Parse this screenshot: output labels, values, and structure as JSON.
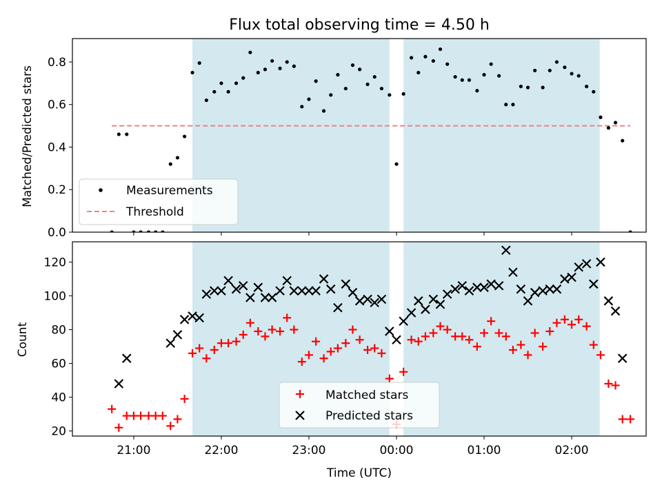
{
  "chart_data": [
    {
      "type": "scatter",
      "title": "Flux total observing time = 4.50 h",
      "xlabel": "",
      "ylabel": "Matched/Predicted stars",
      "ylim": [
        0,
        0.91
      ],
      "yticks": [
        "0.0",
        "0.2",
        "0.4",
        "0.6",
        "0.8"
      ],
      "xtick_labels": [
        "21:00",
        "22:00",
        "23:00",
        "00:00",
        "01:00",
        "02:00"
      ],
      "xtick_hours": [
        21,
        22,
        23,
        24,
        25,
        26
      ],
      "xlim_hours": [
        20.3,
        26.85
      ],
      "shaded_spans_hours": [
        [
          21.67,
          23.92
        ],
        [
          24.08,
          26.32
        ]
      ],
      "shade_color": "#d3e9ef",
      "threshold": {
        "name": "Threshold",
        "value": 0.5,
        "from_hour": 20.75,
        "to_hour": 26.67,
        "color": "#f08080"
      },
      "series": [
        {
          "name": "Measurements",
          "marker": "dot",
          "color": "#000000",
          "points": [
            [
              20.75,
              0.0
            ],
            [
              20.83,
              0.46
            ],
            [
              20.92,
              0.46
            ],
            [
              21.0,
              0.0
            ],
            [
              21.08,
              0.0
            ],
            [
              21.17,
              0.0
            ],
            [
              21.25,
              0.0
            ],
            [
              21.33,
              0.0
            ],
            [
              21.42,
              0.32
            ],
            [
              21.5,
              0.35
            ],
            [
              21.58,
              0.45
            ],
            [
              21.67,
              0.75
            ],
            [
              21.75,
              0.795
            ],
            [
              21.83,
              0.62
            ],
            [
              21.92,
              0.66
            ],
            [
              22.0,
              0.7
            ],
            [
              22.08,
              0.66
            ],
            [
              22.17,
              0.7
            ],
            [
              22.25,
              0.725
            ],
            [
              22.33,
              0.845
            ],
            [
              22.42,
              0.75
            ],
            [
              22.5,
              0.765
            ],
            [
              22.58,
              0.805
            ],
            [
              22.67,
              0.77
            ],
            [
              22.75,
              0.8
            ],
            [
              22.83,
              0.78
            ],
            [
              22.92,
              0.59
            ],
            [
              23.0,
              0.625
            ],
            [
              23.08,
              0.71
            ],
            [
              23.17,
              0.57
            ],
            [
              23.25,
              0.645
            ],
            [
              23.33,
              0.74
            ],
            [
              23.42,
              0.675
            ],
            [
              23.5,
              0.785
            ],
            [
              23.58,
              0.765
            ],
            [
              23.67,
              0.695
            ],
            [
              23.75,
              0.73
            ],
            [
              23.83,
              0.675
            ],
            [
              23.92,
              0.645
            ],
            [
              24.0,
              0.32
            ],
            [
              24.08,
              0.65
            ],
            [
              24.17,
              0.82
            ],
            [
              24.25,
              0.75
            ],
            [
              24.33,
              0.825
            ],
            [
              24.42,
              0.805
            ],
            [
              24.5,
              0.86
            ],
            [
              24.58,
              0.79
            ],
            [
              24.67,
              0.73
            ],
            [
              24.75,
              0.715
            ],
            [
              24.83,
              0.715
            ],
            [
              24.92,
              0.665
            ],
            [
              25.0,
              0.74
            ],
            [
              25.08,
              0.79
            ],
            [
              25.17,
              0.735
            ],
            [
              25.25,
              0.6
            ],
            [
              25.33,
              0.6
            ],
            [
              25.42,
              0.685
            ],
            [
              25.5,
              0.68
            ],
            [
              25.58,
              0.76
            ],
            [
              25.67,
              0.68
            ],
            [
              25.75,
              0.76
            ],
            [
              25.83,
              0.8
            ],
            [
              25.92,
              0.775
            ],
            [
              26.0,
              0.745
            ],
            [
              26.08,
              0.735
            ],
            [
              26.17,
              0.685
            ],
            [
              26.25,
              0.66
            ],
            [
              26.33,
              0.54
            ],
            [
              26.42,
              0.49
            ],
            [
              26.5,
              0.515
            ],
            [
              26.58,
              0.43
            ],
            [
              26.67,
              0.0
            ]
          ]
        }
      ],
      "legend": {
        "placement": "lower-left",
        "entries": [
          "Measurements",
          "Threshold"
        ]
      }
    },
    {
      "type": "scatter",
      "title": "",
      "xlabel": "Time (UTC)",
      "ylabel": "Count",
      "ylim": [
        17,
        132
      ],
      "yticks": [
        "20",
        "40",
        "60",
        "80",
        "100",
        "120"
      ],
      "xtick_labels": [
        "21:00",
        "22:00",
        "23:00",
        "00:00",
        "01:00",
        "02:00"
      ],
      "xtick_hours": [
        21,
        22,
        23,
        24,
        25,
        26
      ],
      "xlim_hours": [
        20.3,
        26.85
      ],
      "shaded_spans_hours": [
        [
          21.67,
          23.92
        ],
        [
          24.08,
          26.32
        ]
      ],
      "series": [
        {
          "name": "Matched stars",
          "marker": "plus",
          "color": "#ff0000",
          "points": [
            [
              20.75,
              33
            ],
            [
              20.83,
              22
            ],
            [
              20.92,
              29
            ],
            [
              21.0,
              29
            ],
            [
              21.08,
              29
            ],
            [
              21.17,
              29
            ],
            [
              21.25,
              29
            ],
            [
              21.33,
              29
            ],
            [
              21.42,
              23
            ],
            [
              21.5,
              27
            ],
            [
              21.58,
              39
            ],
            [
              21.67,
              66
            ],
            [
              21.75,
              69
            ],
            [
              21.83,
              63
            ],
            [
              21.92,
              68
            ],
            [
              22.0,
              72
            ],
            [
              22.08,
              72
            ],
            [
              22.17,
              73
            ],
            [
              22.25,
              77
            ],
            [
              22.33,
              84
            ],
            [
              22.42,
              79
            ],
            [
              22.5,
              76
            ],
            [
              22.58,
              80
            ],
            [
              22.67,
              79
            ],
            [
              22.75,
              87
            ],
            [
              22.83,
              80
            ],
            [
              22.92,
              61
            ],
            [
              23.0,
              65
            ],
            [
              23.08,
              73
            ],
            [
              23.17,
              63
            ],
            [
              23.25,
              67
            ],
            [
              23.33,
              69
            ],
            [
              23.42,
              72
            ],
            [
              23.5,
              80
            ],
            [
              23.58,
              74
            ],
            [
              23.67,
              68
            ],
            [
              23.75,
              69
            ],
            [
              23.83,
              66
            ],
            [
              23.92,
              51
            ],
            [
              24.0,
              24
            ],
            [
              24.08,
              55
            ],
            [
              24.17,
              74
            ],
            [
              24.25,
              73
            ],
            [
              24.33,
              76
            ],
            [
              24.42,
              78
            ],
            [
              24.5,
              82
            ],
            [
              24.58,
              80
            ],
            [
              24.67,
              76
            ],
            [
              24.75,
              76
            ],
            [
              24.83,
              74
            ],
            [
              24.92,
              70
            ],
            [
              25.0,
              78
            ],
            [
              25.08,
              85
            ],
            [
              25.17,
              78
            ],
            [
              25.25,
              76
            ],
            [
              25.33,
              68
            ],
            [
              25.42,
              71
            ],
            [
              25.5,
              65
            ],
            [
              25.58,
              78
            ],
            [
              25.67,
              70
            ],
            [
              25.75,
              79
            ],
            [
              25.83,
              84
            ],
            [
              25.92,
              86
            ],
            [
              26.0,
              83
            ],
            [
              26.08,
              86
            ],
            [
              26.17,
              82
            ],
            [
              26.25,
              71
            ],
            [
              26.33,
              65
            ],
            [
              26.42,
              48
            ],
            [
              26.5,
              47
            ],
            [
              26.58,
              27
            ],
            [
              26.67,
              27
            ]
          ]
        },
        {
          "name": "Predicted stars",
          "marker": "x",
          "color": "#000000",
          "points": [
            [
              20.83,
              48
            ],
            [
              20.92,
              63
            ],
            [
              21.42,
              72
            ],
            [
              21.5,
              77
            ],
            [
              21.58,
              86
            ],
            [
              21.67,
              88
            ],
            [
              21.75,
              87
            ],
            [
              21.83,
              101
            ],
            [
              21.92,
              103
            ],
            [
              22.0,
              103
            ],
            [
              22.08,
              109
            ],
            [
              22.17,
              104
            ],
            [
              22.25,
              106
            ],
            [
              22.33,
              99
            ],
            [
              22.42,
              105
            ],
            [
              22.5,
              99
            ],
            [
              22.58,
              99
            ],
            [
              22.67,
              103
            ],
            [
              22.75,
              109
            ],
            [
              22.83,
              103
            ],
            [
              22.92,
              103
            ],
            [
              23.0,
              103
            ],
            [
              23.08,
              103
            ],
            [
              23.17,
              110
            ],
            [
              23.25,
              104
            ],
            [
              23.33,
              93
            ],
            [
              23.42,
              107
            ],
            [
              23.5,
              102
            ],
            [
              23.58,
              97
            ],
            [
              23.67,
              98
            ],
            [
              23.75,
              96
            ],
            [
              23.83,
              98
            ],
            [
              23.92,
              79
            ],
            [
              24.0,
              74
            ],
            [
              24.08,
              85
            ],
            [
              24.17,
              90
            ],
            [
              24.25,
              97
            ],
            [
              24.33,
              92
            ],
            [
              24.42,
              98
            ],
            [
              24.5,
              95
            ],
            [
              24.58,
              101
            ],
            [
              24.67,
              104
            ],
            [
              24.75,
              106
            ],
            [
              24.83,
              103
            ],
            [
              24.92,
              105
            ],
            [
              25.0,
              105
            ],
            [
              25.08,
              107
            ],
            [
              25.17,
              106
            ],
            [
              25.25,
              127
            ],
            [
              25.33,
              114
            ],
            [
              25.42,
              104
            ],
            [
              25.5,
              97
            ],
            [
              25.58,
              102
            ],
            [
              25.67,
              103
            ],
            [
              25.75,
              104
            ],
            [
              25.83,
              104
            ],
            [
              25.92,
              110
            ],
            [
              26.0,
              111
            ],
            [
              26.08,
              117
            ],
            [
              26.17,
              119
            ],
            [
              26.25,
              107
            ],
            [
              26.33,
              120
            ],
            [
              26.42,
              97
            ],
            [
              26.5,
              91
            ],
            [
              26.58,
              63
            ]
          ]
        }
      ],
      "legend": {
        "placement": "lower-center",
        "entries": [
          "Matched stars",
          "Predicted stars"
        ]
      }
    }
  ]
}
